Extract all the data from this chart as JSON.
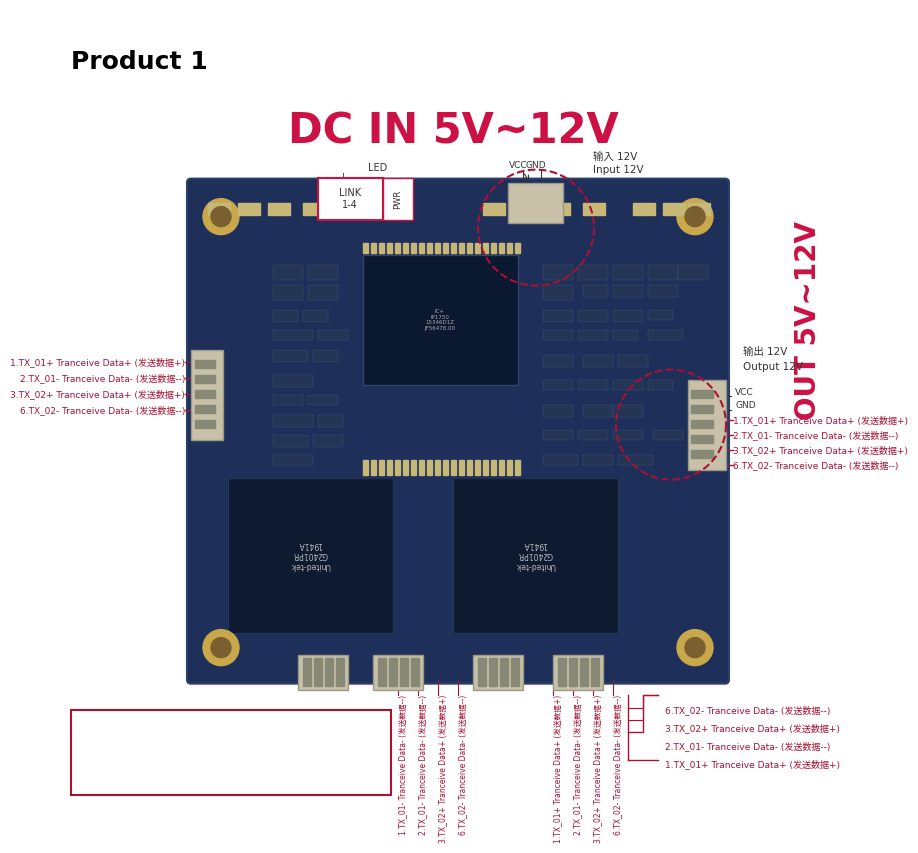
{
  "bg_color": "#ffffff",
  "title": "Product 1",
  "dc_in_text": "DC IN 5V~12V",
  "dc_in_color": "#cc1144",
  "out_text": "OUT 5V~12V",
  "out_color": "#cc1144",
  "annotation_color": "#aa1133",
  "board_color": "#1e2f5a",
  "board_edge": "#2a3f6a",
  "chip_color": "#0e1f3a",
  "connector_color": "#c8c0a8",
  "mount_hole_outer": "#c8a84a",
  "mount_hole_inner": "#7a6030",
  "left_labels": [
    "1.TX_01+ Tranceive Data+ (发送数据+)",
    "2.TX_01- Tranceive Data- (发送数据--)",
    "3.TX_02+ Tranceive Data+ (发送数据+)",
    "6.TX_02- Tranceive Data- (发送数据--)"
  ],
  "right_labels": [
    "1.TX_01+ Tranceive Data+ (发送数据+)",
    "2.TX_01- Tranceive Data- (发送数据--)",
    "3.TX_02+ Tranceive Data+ (发送数据+)",
    "6.TX_02- Tranceive Data- (发送数据--)"
  ],
  "bottom_left_labels": [
    "1.TX_01- Tranceive Data- (发送数据--)",
    "2.TX_01- Tranceive Data- (发送数据--)",
    "3.TX_02+ Tranceive Data+ (发送数据+)",
    "6.TX_02- Tranceive Data- (发送数据--)"
  ],
  "bottom_right_labels": [
    "6.TX_02- Tranceive Data- (发送数据--)",
    "3.TX_02+ Tranceive Data+ (发送数据+)",
    "2.TX_01- Tranceive Data- (发送数据--)",
    "1.TX_01+ Tranceive Data+ (发送数据+)"
  ],
  "box_labels": [
    "1.TX_01+ Tranceive Data+ (发送数据+)",
    "2.TX_01- Tranceive Data- (发送数据--)",
    "3.TX_02+ Tranceive Data+ (发送数据+)",
    "6.TX_02- Tranceive Data- (发送数据--)"
  ],
  "input_label1": "输入 12V",
  "input_label2": "Input 12V",
  "output_label1": "输出 12V",
  "output_label2": "Output 12V",
  "vcc_gnd": "VCC\nGND"
}
